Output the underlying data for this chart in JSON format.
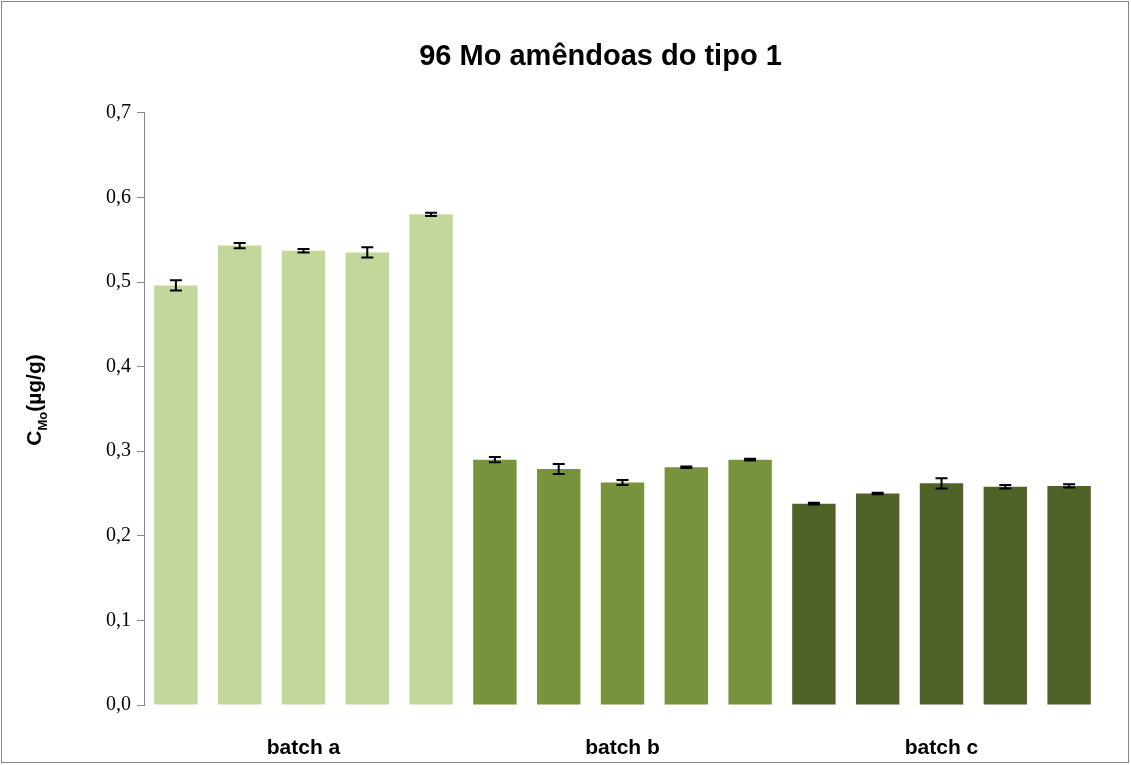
{
  "chart_data": {
    "type": "bar",
    "title": "96 Mo amêndoas do tipo 1",
    "ylabel": "C$_{Mo}$(µg/g)",
    "categories": [
      null,
      null,
      null,
      null,
      null,
      null,
      null,
      null,
      null,
      null,
      null,
      null,
      null,
      null,
      null
    ],
    "values": [
      0.496,
      0.543,
      0.537,
      0.535,
      0.58,
      0.29,
      0.279,
      0.263,
      0.281,
      0.29,
      0.238,
      0.25,
      0.262,
      0.258,
      0.259
    ],
    "errors": [
      0.006,
      0.003,
      0.002,
      0.006,
      0.002,
      0.003,
      0.006,
      0.003,
      0.001,
      0.001,
      0.001,
      0.001,
      0.006,
      0.002,
      0.002
    ],
    "colors": [
      "#c4d79b",
      "#c4d79b",
      "#c4d79b",
      "#c4d79b",
      "#c4d79b",
      "#77933c",
      "#77933c",
      "#77933c",
      "#77933c",
      "#77933c",
      "#4f6228",
      "#4f6228",
      "#4f6228",
      "#4f6228",
      "#4f6228"
    ],
    "ylim": [
      0,
      0.7
    ],
    "yticks": [
      {
        "value": 0,
        "label": "0,0"
      },
      {
        "value": 0.1,
        "label": "0,1"
      },
      {
        "value": 0.2,
        "label": "0,2"
      },
      {
        "value": 0.3,
        "label": "0,3"
      },
      {
        "value": 0.4,
        "label": "0,4"
      },
      {
        "value": 0.5,
        "label": "0,5"
      },
      {
        "value": 0.6,
        "label": "0,6"
      },
      {
        "value": 0.7,
        "label": "0,7"
      }
    ],
    "annotations": [
      "batch a",
      "batch b",
      "batch c"
    ],
    "grid": false,
    "legend": false
  }
}
